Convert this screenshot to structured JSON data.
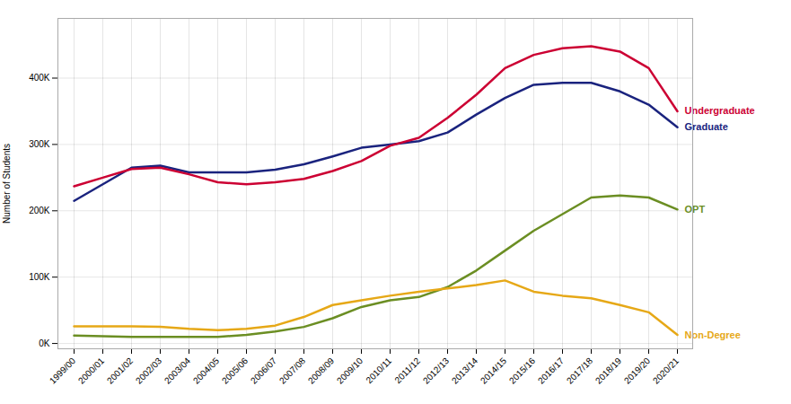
{
  "chart_data": {
    "type": "line",
    "ylabel": "Number of Students",
    "categories": [
      "1999/00",
      "2000/01",
      "2001/02",
      "2002/03",
      "2003/04",
      "2004/05",
      "2005/06",
      "2006/07",
      "2007/08",
      "2008/09",
      "2009/10",
      "2010/11",
      "2011/12",
      "2012/13",
      "2013/14",
      "2014/15",
      "2015/16",
      "2016/17",
      "2017/18",
      "2018/19",
      "2019/20",
      "2020/21"
    ],
    "series": [
      {
        "name": "Graduate",
        "color": "#1a237e",
        "values": [
          215000,
          240000,
          265000,
          268000,
          258000,
          258000,
          258000,
          262000,
          270000,
          282000,
          295000,
          300000,
          305000,
          318000,
          345000,
          370000,
          390000,
          393000,
          393000,
          380000,
          360000,
          326000
        ]
      },
      {
        "name": "Undergraduate",
        "color": "#cc0033",
        "values": [
          237000,
          250000,
          263000,
          265000,
          255000,
          243000,
          240000,
          243000,
          248000,
          260000,
          275000,
          298000,
          310000,
          340000,
          375000,
          415000,
          435000,
          445000,
          448000,
          440000,
          415000,
          350000
        ]
      },
      {
        "name": "OPT",
        "color": "#6b8e23",
        "values": [
          12000,
          11000,
          10000,
          10000,
          10000,
          10000,
          13000,
          18000,
          25000,
          38000,
          55000,
          65000,
          70000,
          85000,
          110000,
          140000,
          170000,
          195000,
          220000,
          223000,
          220000,
          202000
        ]
      },
      {
        "name": "Non-Degree",
        "color": "#e6a817",
        "values": [
          26000,
          26000,
          26000,
          25000,
          22000,
          20000,
          22000,
          27000,
          40000,
          58000,
          65000,
          72000,
          78000,
          83000,
          88000,
          95000,
          78000,
          72000,
          68000,
          58000,
          47000,
          13000
        ]
      }
    ],
    "ylim": [
      -8000,
      490000
    ],
    "yticks": [
      {
        "value": 0,
        "label": "0K"
      },
      {
        "value": 100000,
        "label": "100K"
      },
      {
        "value": 200000,
        "label": "200K"
      },
      {
        "value": 300000,
        "label": "300K"
      },
      {
        "value": 400000,
        "label": "400K"
      }
    ],
    "grid": true
  }
}
